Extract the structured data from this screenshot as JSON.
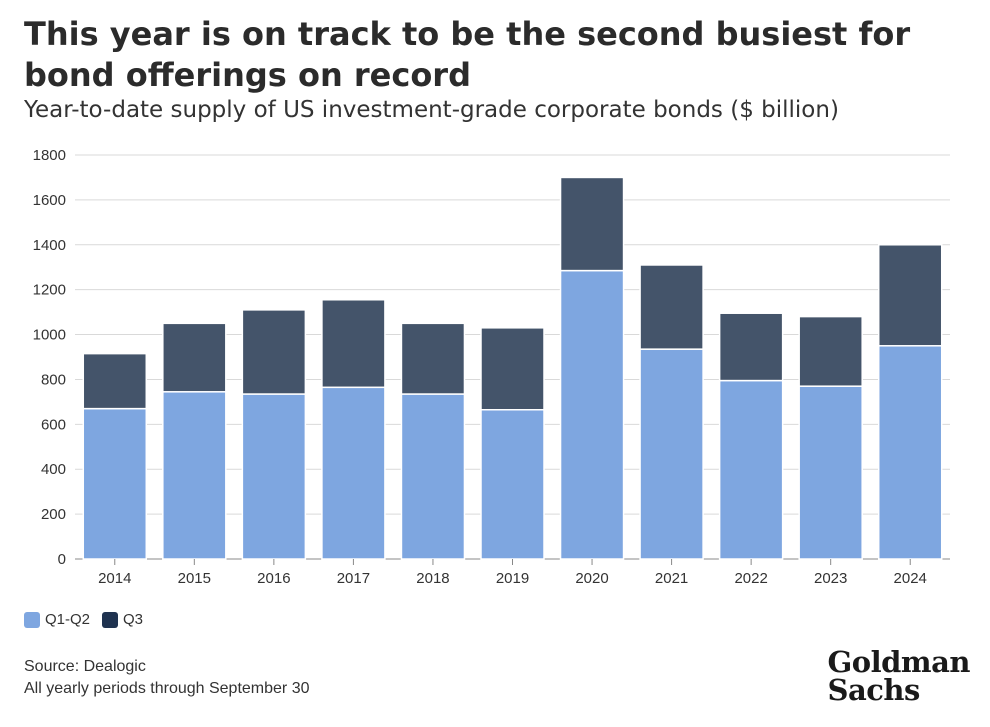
{
  "title": "This year is on track to be the second busiest for bond offerings on record",
  "subtitle": "Year-to-date supply of US investment-grade corporate bonds ($ billion)",
  "chart_data": {
    "type": "bar",
    "stacked": true,
    "categories": [
      "2014",
      "2015",
      "2016",
      "2017",
      "2018",
      "2019",
      "2020",
      "2021",
      "2022",
      "2023",
      "2024"
    ],
    "series": [
      {
        "name": "Q1-Q2",
        "color": "#7ea6e0",
        "values": [
          670,
          745,
          735,
          765,
          735,
          665,
          1285,
          935,
          795,
          770,
          950
        ]
      },
      {
        "name": "Q3",
        "color": "#44546a",
        "values": [
          245,
          305,
          375,
          390,
          315,
          365,
          415,
          375,
          300,
          310,
          450
        ]
      }
    ],
    "ylim": [
      0,
      1800
    ],
    "yticks": [
      0,
      200,
      400,
      600,
      800,
      1000,
      1200,
      1400,
      1600,
      1800
    ],
    "grid": true,
    "legend_position": "bottom-left"
  },
  "legend": [
    {
      "label": "Q1-Q2",
      "color": "#7ea6e0"
    },
    {
      "label": "Q3",
      "color": "#1f3350"
    }
  ],
  "footer": {
    "source": "Source: Dealogic",
    "note": "All yearly periods through September 30"
  },
  "logo": {
    "line1": "Goldman",
    "line2": "Sachs"
  }
}
